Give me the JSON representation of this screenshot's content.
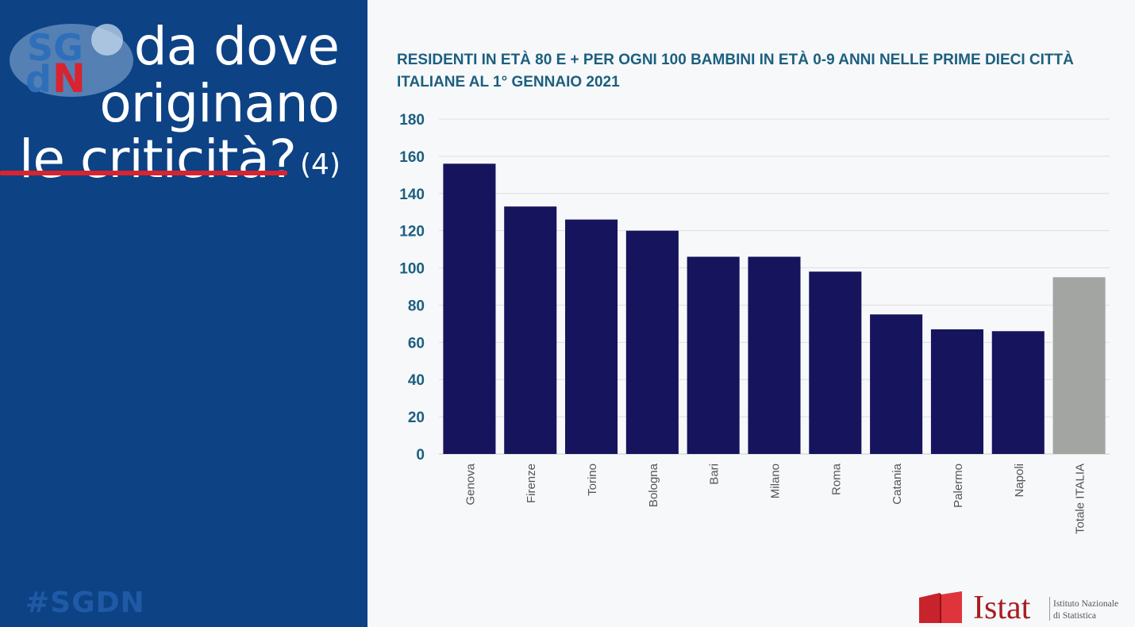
{
  "slide": {
    "headline": {
      "line1": "da dove",
      "line2": "originano",
      "line3": "le criticità?",
      "line3_suffix": "(4)"
    },
    "hashtag": "#SGDN",
    "logo_text": [
      "SG",
      "d",
      "N"
    ],
    "brand": {
      "name": "Istat",
      "subtitle_line1": "Istituto Nazionale",
      "subtitle_line2": "di Statistica"
    },
    "colors": {
      "panel": "#0d4285",
      "accent": "#d9232f",
      "bar": "#16145c",
      "total_bar": "#a3a5a3",
      "title": "#1c5f7f"
    }
  },
  "chart_data": {
    "type": "bar",
    "title": "RESIDENTI IN ETÀ 80 E +  PER OGNI 100 BAMBINI IN ETÀ 0-9 ANNI NELLE PRIME DIECI CITTÀ ITALIANE  AL 1° GENNAIO 2021",
    "xlabel": "",
    "ylabel": "",
    "ylim": [
      0,
      180
    ],
    "yticks": [
      0,
      20,
      40,
      60,
      80,
      100,
      120,
      140,
      160,
      180
    ],
    "grid": true,
    "legend": "none",
    "categories": [
      "Genova",
      "Firenze",
      "Torino",
      "Bologna",
      "Bari",
      "Milano",
      "Roma",
      "Catania",
      "Palermo",
      "Napoli",
      "Totale ITALIA"
    ],
    "values": [
      156,
      133,
      126,
      120,
      106,
      106,
      98,
      75,
      67,
      66,
      95
    ],
    "highlight_category": "Totale ITALIA"
  }
}
